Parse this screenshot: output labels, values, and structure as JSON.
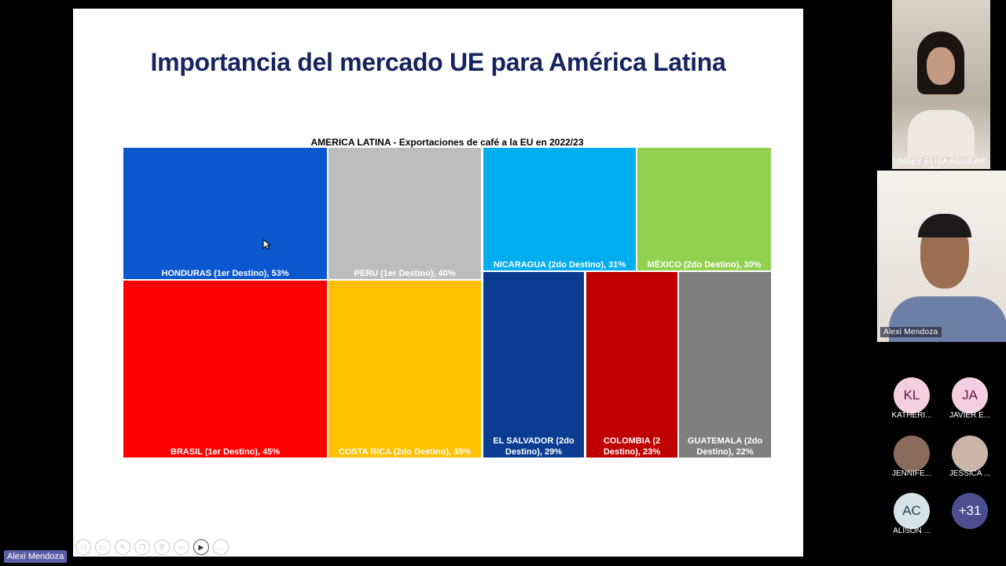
{
  "slide": {
    "title": "Importancia del mercado UE para América Latina"
  },
  "chart_data": {
    "type": "treemap",
    "title": "AMERICA LATINA - Exportaciones de café a la EU en 2022/23",
    "items": [
      {
        "label": "HONDURAS (1er Destino), 53%",
        "country": "HONDURAS",
        "value": 53,
        "color": "#0b57d0"
      },
      {
        "label": "PERU (1er Destino), 40%",
        "country": "PERU",
        "value": 40,
        "color": "#bdbdbd"
      },
      {
        "label": "NICARAGUA (2do Destino), 31%",
        "country": "NICARAGUA",
        "value": 31,
        "color": "#00aeef"
      },
      {
        "label": "MÉXICO (2do Destino), 30%",
        "country": "MÉXICO",
        "value": 30,
        "color": "#92d050"
      },
      {
        "label": "BRASIL (1er Destino), 45%",
        "country": "BRASIL",
        "value": 45,
        "color": "#ff0000"
      },
      {
        "label": "COSTA RICA (2do Destino), 35%",
        "country": "COSTA RICA",
        "value": 35,
        "color": "#ffc000"
      },
      {
        "label": "EL SALVADOR (2do Destino), 29%",
        "country": "EL SALVADOR",
        "value": 29,
        "color": "#0a3d91"
      },
      {
        "label": "COLOMBIA (2 Destino), 23%",
        "country": "COLOMBIA",
        "value": 23,
        "color": "#c00000"
      },
      {
        "label": "GUATEMALA (2do Destino), 22%",
        "country": "GUATEMALA",
        "value": 22,
        "color": "#7f7f7f"
      }
    ]
  },
  "toolbar": [
    "previous",
    "next",
    "pen",
    "copy",
    "zoom",
    "subtitles",
    "camera",
    "more"
  ],
  "presenter": "Alexi Mendoza",
  "videos": [
    {
      "name": "LINSEY ELISA AGUILAR BA..."
    },
    {
      "name": "Alexi Mendoza"
    }
  ],
  "participants": [
    {
      "initials": "KL",
      "name": "KATHERI...",
      "bg": "#f4cfe0",
      "fg": "#6b1842"
    },
    {
      "initials": "JA",
      "name": "JAVIER E...",
      "bg": "#f4cfe0",
      "fg": "#6b1842"
    },
    {
      "initials": "",
      "name": "JENNIFE...",
      "bg": "#8a6a5a",
      "fg": "#fff"
    },
    {
      "initials": "",
      "name": "JESSICA ...",
      "bg": "#c9b6a8",
      "fg": "#fff"
    },
    {
      "initials": "AC",
      "name": "ALISON ...",
      "bg": "#d6e4ea",
      "fg": "#24404e"
    },
    {
      "initials": "+31",
      "name": "",
      "bg": "#4b4f8f",
      "fg": "#fff"
    }
  ]
}
